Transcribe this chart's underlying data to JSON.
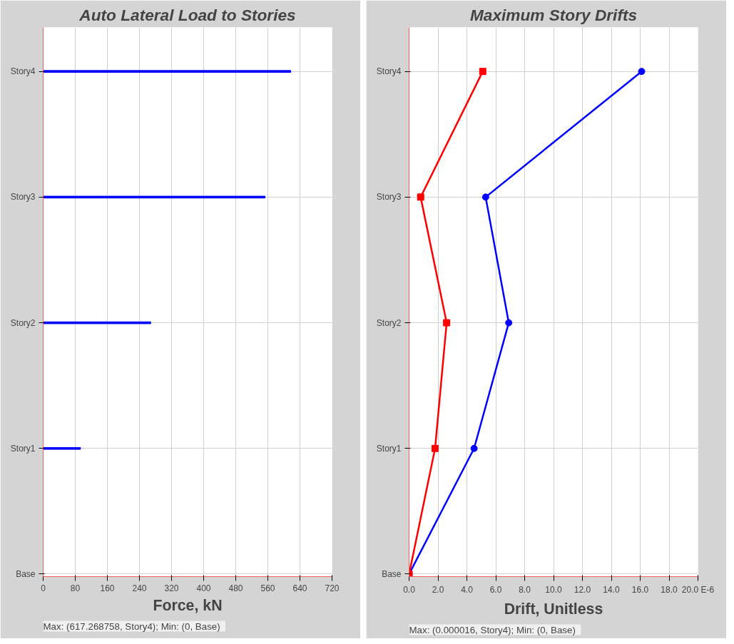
{
  "chart_data": [
    {
      "type": "bar",
      "orientation": "horizontal",
      "title": "Auto Lateral Load to Stories",
      "xlabel": "Force, kN",
      "categories": [
        "Story4",
        "Story3",
        "Story2",
        "Story1",
        "Base"
      ],
      "series": [
        {
          "color": "#0000ff",
          "values": [
            617,
            553,
            268,
            93,
            0
          ]
        }
      ],
      "xlim": [
        0,
        720
      ],
      "xticks": [
        0,
        80,
        160,
        240,
        320,
        400,
        480,
        560,
        640,
        720
      ],
      "grid": true,
      "annotations": [
        "Max: (617.268758, Story4);   Min: (0, Base)"
      ]
    },
    {
      "type": "line",
      "orientation": "horizontal",
      "title": "Maximum Story Drifts",
      "xlabel": "Drift, Unitless",
      "categories": [
        "Story4",
        "Story3",
        "Story2",
        "Story1",
        "Base"
      ],
      "series": [
        {
          "color": "#0000ff",
          "marker": "circle",
          "values": [
            16.1,
            5.3,
            6.9,
            4.5,
            0
          ]
        },
        {
          "color": "#ff0000",
          "marker": "square",
          "values": [
            5.1,
            0.8,
            2.6,
            1.8,
            0
          ]
        }
      ],
      "xlim": [
        0,
        20
      ],
      "xticks": [
        {
          "value": 0,
          "label": "0.0"
        },
        {
          "value": 2,
          "label": "2.0"
        },
        {
          "value": 4,
          "label": "4.0"
        },
        {
          "value": 6,
          "label": "6.0"
        },
        {
          "value": 8,
          "label": "8.0"
        },
        {
          "value": 10,
          "label": "10.0"
        },
        {
          "value": 12,
          "label": "12.0"
        },
        {
          "value": 14,
          "label": "14.0"
        },
        {
          "value": 16,
          "label": "16.0"
        },
        {
          "value": 18,
          "label": "18.0"
        },
        {
          "value": 20,
          "label": "20.0 E-6"
        }
      ],
      "grid": true,
      "annotations": [
        "Max: (0.000016, Story4);   Min: (0, Base)"
      ]
    }
  ]
}
